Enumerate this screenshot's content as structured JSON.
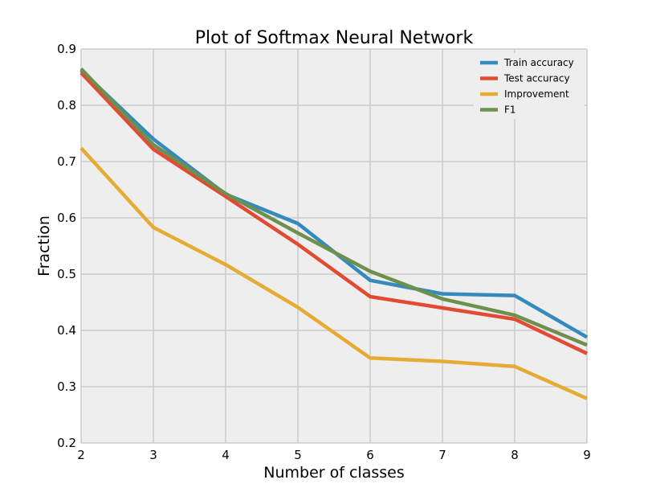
{
  "chart_data": {
    "type": "line",
    "title": "Plot of Softmax Neural Network",
    "xlabel": "Number of classes",
    "ylabel": "Fraction",
    "x": [
      2,
      3,
      4,
      5,
      6,
      7,
      8,
      9
    ],
    "xlim": [
      2,
      9
    ],
    "ylim": [
      0.2,
      0.9
    ],
    "xticks": [
      "2",
      "3",
      "4",
      "5",
      "6",
      "7",
      "8",
      "9"
    ],
    "yticks": [
      "0.2",
      "0.3",
      "0.4",
      "0.5",
      "0.6",
      "0.7",
      "0.8",
      "0.9"
    ],
    "grid": true,
    "legend_position": "top-right",
    "background_color": "#eeeeee",
    "grid_color": "#cbcbcb",
    "series": [
      {
        "name": "Train accuracy",
        "color": "#348abd",
        "values": [
          0.862,
          0.74,
          0.642,
          0.59,
          0.489,
          0.465,
          0.462,
          0.388
        ]
      },
      {
        "name": "Test accuracy",
        "color": "#e24a33",
        "values": [
          0.858,
          0.722,
          0.638,
          0.553,
          0.46,
          0.44,
          0.42,
          0.359
        ]
      },
      {
        "name": "Improvement",
        "color": "#e6ab33",
        "values": [
          0.724,
          0.583,
          0.517,
          0.441,
          0.351,
          0.345,
          0.336,
          0.279
        ]
      },
      {
        "name": "F1",
        "color": "#6d904f",
        "values": [
          0.865,
          0.73,
          0.643,
          0.573,
          0.505,
          0.456,
          0.427,
          0.374
        ]
      }
    ]
  }
}
